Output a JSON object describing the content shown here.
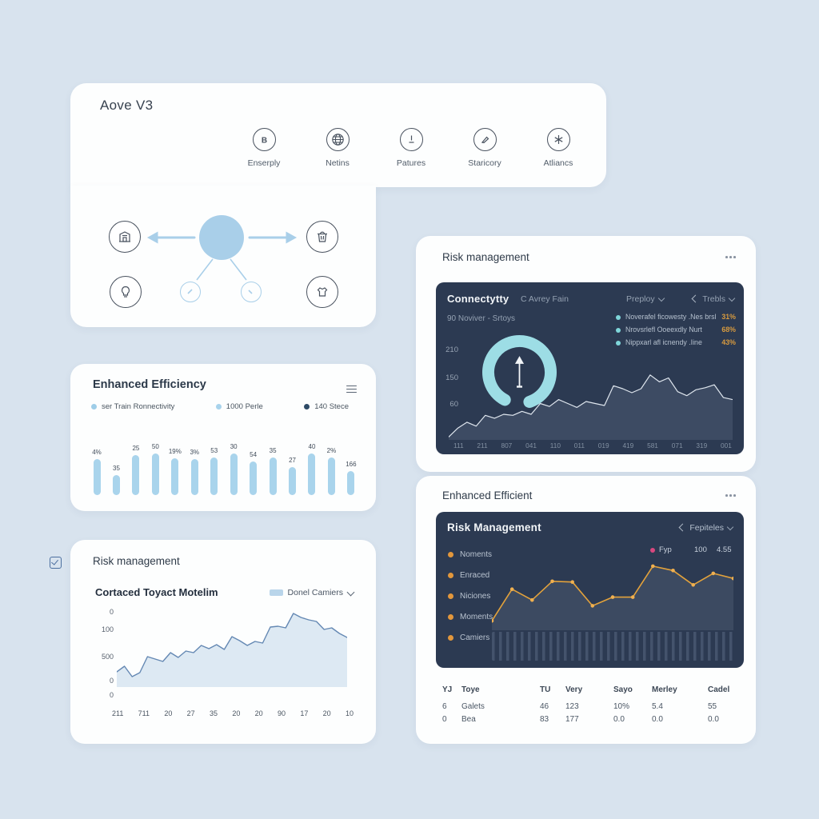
{
  "colors": {
    "background": "#d8e3ee",
    "card": "#fdfefe",
    "dark_panel": "#2c3a52",
    "accent_blue": "#a9d4ec",
    "accent_teal": "#9ddde5",
    "accent_orange": "#e3a23b",
    "accent_pink": "#d9487f",
    "value_orange": "#d79a3f"
  },
  "platform_card": {
    "title": "Aove V3",
    "features": [
      {
        "icon": "b-badge-icon",
        "glyph": "B",
        "label": "Enserply"
      },
      {
        "icon": "globe-icon",
        "label": "Netins"
      },
      {
        "icon": "dial-icon",
        "label": "Patures"
      },
      {
        "icon": "pen-icon",
        "label": "Staricory"
      },
      {
        "icon": "asterisk-icon",
        "label": "Atliancs"
      }
    ]
  },
  "efficiency_card": {
    "title": "Enhanced Efficiency",
    "legend": [
      {
        "label": "ser Train Ronnectivity",
        "color": "#9ecde8"
      },
      {
        "label": "1000 Perle",
        "color": "#a8d3ec"
      },
      {
        "label": "140 Stece",
        "color": "#2e4a66"
      }
    ],
    "chart_data": {
      "type": "bar",
      "labels": [
        "4%",
        "35",
        "25",
        "50",
        "19%",
        "3%",
        "53",
        "30",
        "54",
        "35",
        "27",
        "40",
        "2%",
        "166"
      ],
      "values": [
        45,
        25,
        50,
        52,
        46,
        45,
        47,
        52,
        42,
        47,
        35,
        52,
        47,
        30
      ],
      "bar_color": "#a9d4ec"
    }
  },
  "risk_card": {
    "title": "Risk management",
    "subtitle": "Cortaced Toyact Motelim",
    "filter_label": "Donel Camiers",
    "chart_data": {
      "type": "area",
      "y_labels": [
        "0",
        "100",
        "500",
        "0",
        "0"
      ],
      "x_labels": [
        "211",
        "711",
        "20",
        "27",
        "35",
        "20",
        "20",
        "90",
        "17",
        "20",
        "10"
      ],
      "values": [
        19,
        26,
        13,
        18,
        38,
        35,
        32,
        43,
        37,
        45,
        43,
        52,
        48,
        53,
        47,
        63,
        58,
        52,
        57,
        55,
        75,
        76,
        74,
        92,
        87,
        84,
        82,
        72,
        74,
        67,
        62
      ],
      "line_color": "#6488b3",
      "fill_color": "#dde9f3"
    }
  },
  "connectivity_card": {
    "title": "Risk management",
    "panel": {
      "title": "Connectytty",
      "subtitle_inline": "C Avrey Fain",
      "dropdown1": "Preploy",
      "dropdown2": "Trebls",
      "period": "90 Noviver - Srtoys",
      "legend": [
        {
          "label": "Noverafel ficowesty .Nes brsl",
          "value": "31%"
        },
        {
          "label": "Nrovsrlefl Ooeexdly Nurt",
          "value": "68%"
        },
        {
          "label": "Nippxarl afl icnendy .Iine",
          "value": "43%"
        }
      ],
      "chart_data": {
        "type": "area",
        "y_labels": [
          "210",
          "150",
          "60",
          "0"
        ],
        "x_labels": [
          "111",
          "211",
          "807",
          "041",
          "110",
          "011",
          "019",
          "419",
          "581",
          "071",
          "319",
          "001"
        ],
        "values": [
          3,
          12,
          18,
          14,
          25,
          22,
          26,
          25,
          29,
          26,
          37,
          34,
          41,
          37,
          33,
          39,
          37,
          35,
          55,
          52,
          48,
          52,
          66,
          59,
          63,
          49,
          45,
          51,
          53,
          56,
          43,
          41
        ],
        "line_color": "#dfe6ee",
        "fill_color": "#3d4b63",
        "gauge_color": "#9ddde5"
      }
    }
  },
  "efficient_card": {
    "title": "Enhanced Efficient",
    "panel": {
      "title": "Risk Management",
      "dropdown": "Fepiteles",
      "list": [
        "Noments",
        "Enraced",
        "Niciones",
        "Moments",
        "Camiers"
      ],
      "series_label": "Fyp",
      "stat1": "100",
      "stat2": "4.55",
      "chart_data": {
        "type": "line",
        "values": [
          13,
          57,
          42,
          68,
          67,
          34,
          46,
          46,
          89,
          83,
          63,
          79,
          72
        ],
        "line_color": "#e3a23b",
        "marker_color": "#f0b050",
        "fill_color": "#3c4a61"
      }
    },
    "table": {
      "headers": [
        "YJ",
        "Toye",
        "TU",
        "Very",
        "Sayo",
        "Merley",
        "Cadel"
      ],
      "rows": [
        [
          "6",
          "Galets",
          "46",
          "123",
          "10%",
          "5.4",
          "55"
        ],
        [
          "0",
          "Bea",
          "83",
          "177",
          "0.0",
          "0.0",
          "0.0"
        ]
      ]
    }
  }
}
